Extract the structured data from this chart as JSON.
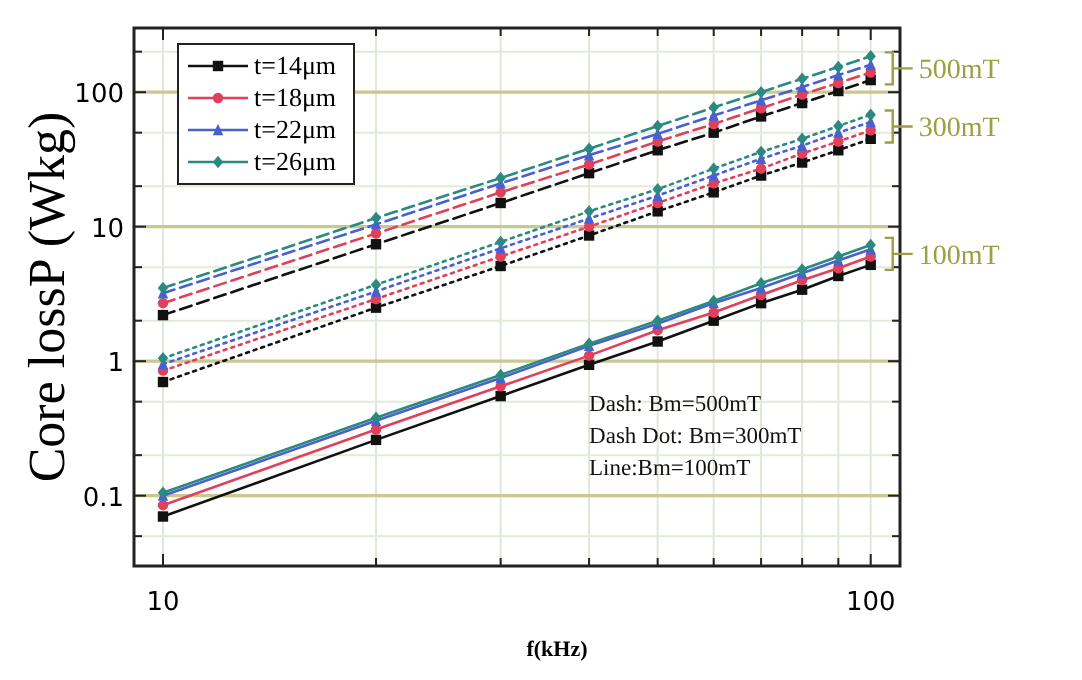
{
  "chart_data": {
    "type": "line",
    "xlabel": "f(kHz)",
    "ylabel": "Core lossP (Wkg)",
    "log": "xy",
    "grid": true,
    "legend": "top left",
    "x": [
      10,
      20,
      30,
      40,
      50,
      60,
      70,
      80,
      90,
      100
    ],
    "xlim": [
      9.1,
      110
    ],
    "xticks": [
      10,
      {
        "value": 20,
        "label": null
      },
      {
        "value": 30,
        "label": null
      },
      {
        "value": 40,
        "label": null
      },
      {
        "value": 50,
        "label": null
      },
      {
        "value": 60,
        "label": null
      },
      {
        "value": 70,
        "label": null
      },
      {
        "value": 80,
        "label": null
      },
      {
        "value": 90,
        "label": null
      },
      100
    ],
    "ylim": [
      0.03,
      300
    ],
    "yticks": [
      {
        "value": 0.05,
        "label": null
      },
      0.1,
      {
        "value": 0.2,
        "label": null
      },
      {
        "value": 0.5,
        "label": null
      },
      1,
      {
        "value": 2,
        "label": null
      },
      {
        "value": 5,
        "label": null
      },
      10,
      {
        "value": 20,
        "label": null
      },
      {
        "value": 50,
        "label": null
      },
      100,
      {
        "value": 200,
        "label": null
      }
    ],
    "series": [
      {
        "name": "t=14μm",
        "color": "#111111",
        "marker": "square",
        "line_style": "solid",
        "values": [
          0.07,
          0.26,
          0.55,
          0.94,
          1.4,
          2.0,
          2.7,
          3.4,
          4.3,
          5.2
        ]
      },
      {
        "name": "t=18μm",
        "color": "#e0405a",
        "marker": "circle",
        "line_style": "solid",
        "values": [
          0.085,
          0.31,
          0.65,
          1.1,
          1.7,
          2.3,
          3.1,
          4.0,
          4.9,
          6.0
        ]
      },
      {
        "name": "t=22μm",
        "color": "#4a5fd0",
        "marker": "triangle",
        "line_style": "solid",
        "values": [
          0.1,
          0.36,
          0.75,
          1.3,
          1.9,
          2.7,
          3.5,
          4.5,
          5.6,
          6.8
        ]
      },
      {
        "name": "t=26μm",
        "color": "#2a8a80",
        "marker": "diamond",
        "line_style": "solid",
        "values": [
          0.105,
          0.38,
          0.79,
          1.35,
          2.0,
          2.8,
          3.8,
          4.8,
          6.0,
          7.3
        ]
      },
      {
        "color": "#111111",
        "marker": "square",
        "line_style": "dotted",
        "values": [
          0.7,
          2.5,
          5.1,
          8.6,
          13,
          18,
          24,
          30,
          37,
          45
        ]
      },
      {
        "color": "#e0405a",
        "marker": "circle",
        "line_style": "dotted",
        "values": [
          0.85,
          2.9,
          6.0,
          10,
          15,
          21,
          27,
          35,
          43,
          52
        ]
      },
      {
        "color": "#4a5fd0",
        "marker": "triangle",
        "line_style": "dotted",
        "values": [
          0.95,
          3.3,
          6.9,
          11.5,
          17,
          24,
          32,
          40,
          50,
          60
        ]
      },
      {
        "color": "#2a8a80",
        "marker": "diamond",
        "line_style": "dotted",
        "values": [
          1.05,
          3.7,
          7.7,
          13,
          19,
          27,
          36,
          45,
          56,
          68
        ]
      },
      {
        "color": "#111111",
        "marker": "square",
        "line_style": "dashed",
        "values": [
          2.2,
          7.4,
          15,
          25,
          37,
          50,
          66,
          83,
          102,
          123
        ]
      },
      {
        "color": "#e0405a",
        "marker": "circle",
        "line_style": "dashed",
        "values": [
          2.7,
          8.9,
          18,
          29,
          43,
          58,
          76,
          96,
          117,
          140
        ]
      },
      {
        "color": "#4a5fd0",
        "marker": "triangle",
        "line_style": "dashed",
        "values": [
          3.2,
          10.4,
          21,
          34,
          49,
          67,
          87,
          109,
          134,
          160
        ]
      },
      {
        "color": "#2a8a80",
        "marker": "diamond",
        "line_style": "dashed",
        "values": [
          3.5,
          11.6,
          23,
          38,
          56,
          77,
          100,
          126,
          154,
          185
        ]
      }
    ],
    "annotations": [
      "500mT",
      "300mT",
      "100mT",
      "Dash: Bm=500mT",
      "Dash Dot: Bm=300mT",
      "Line:Bm=100mT"
    ]
  }
}
